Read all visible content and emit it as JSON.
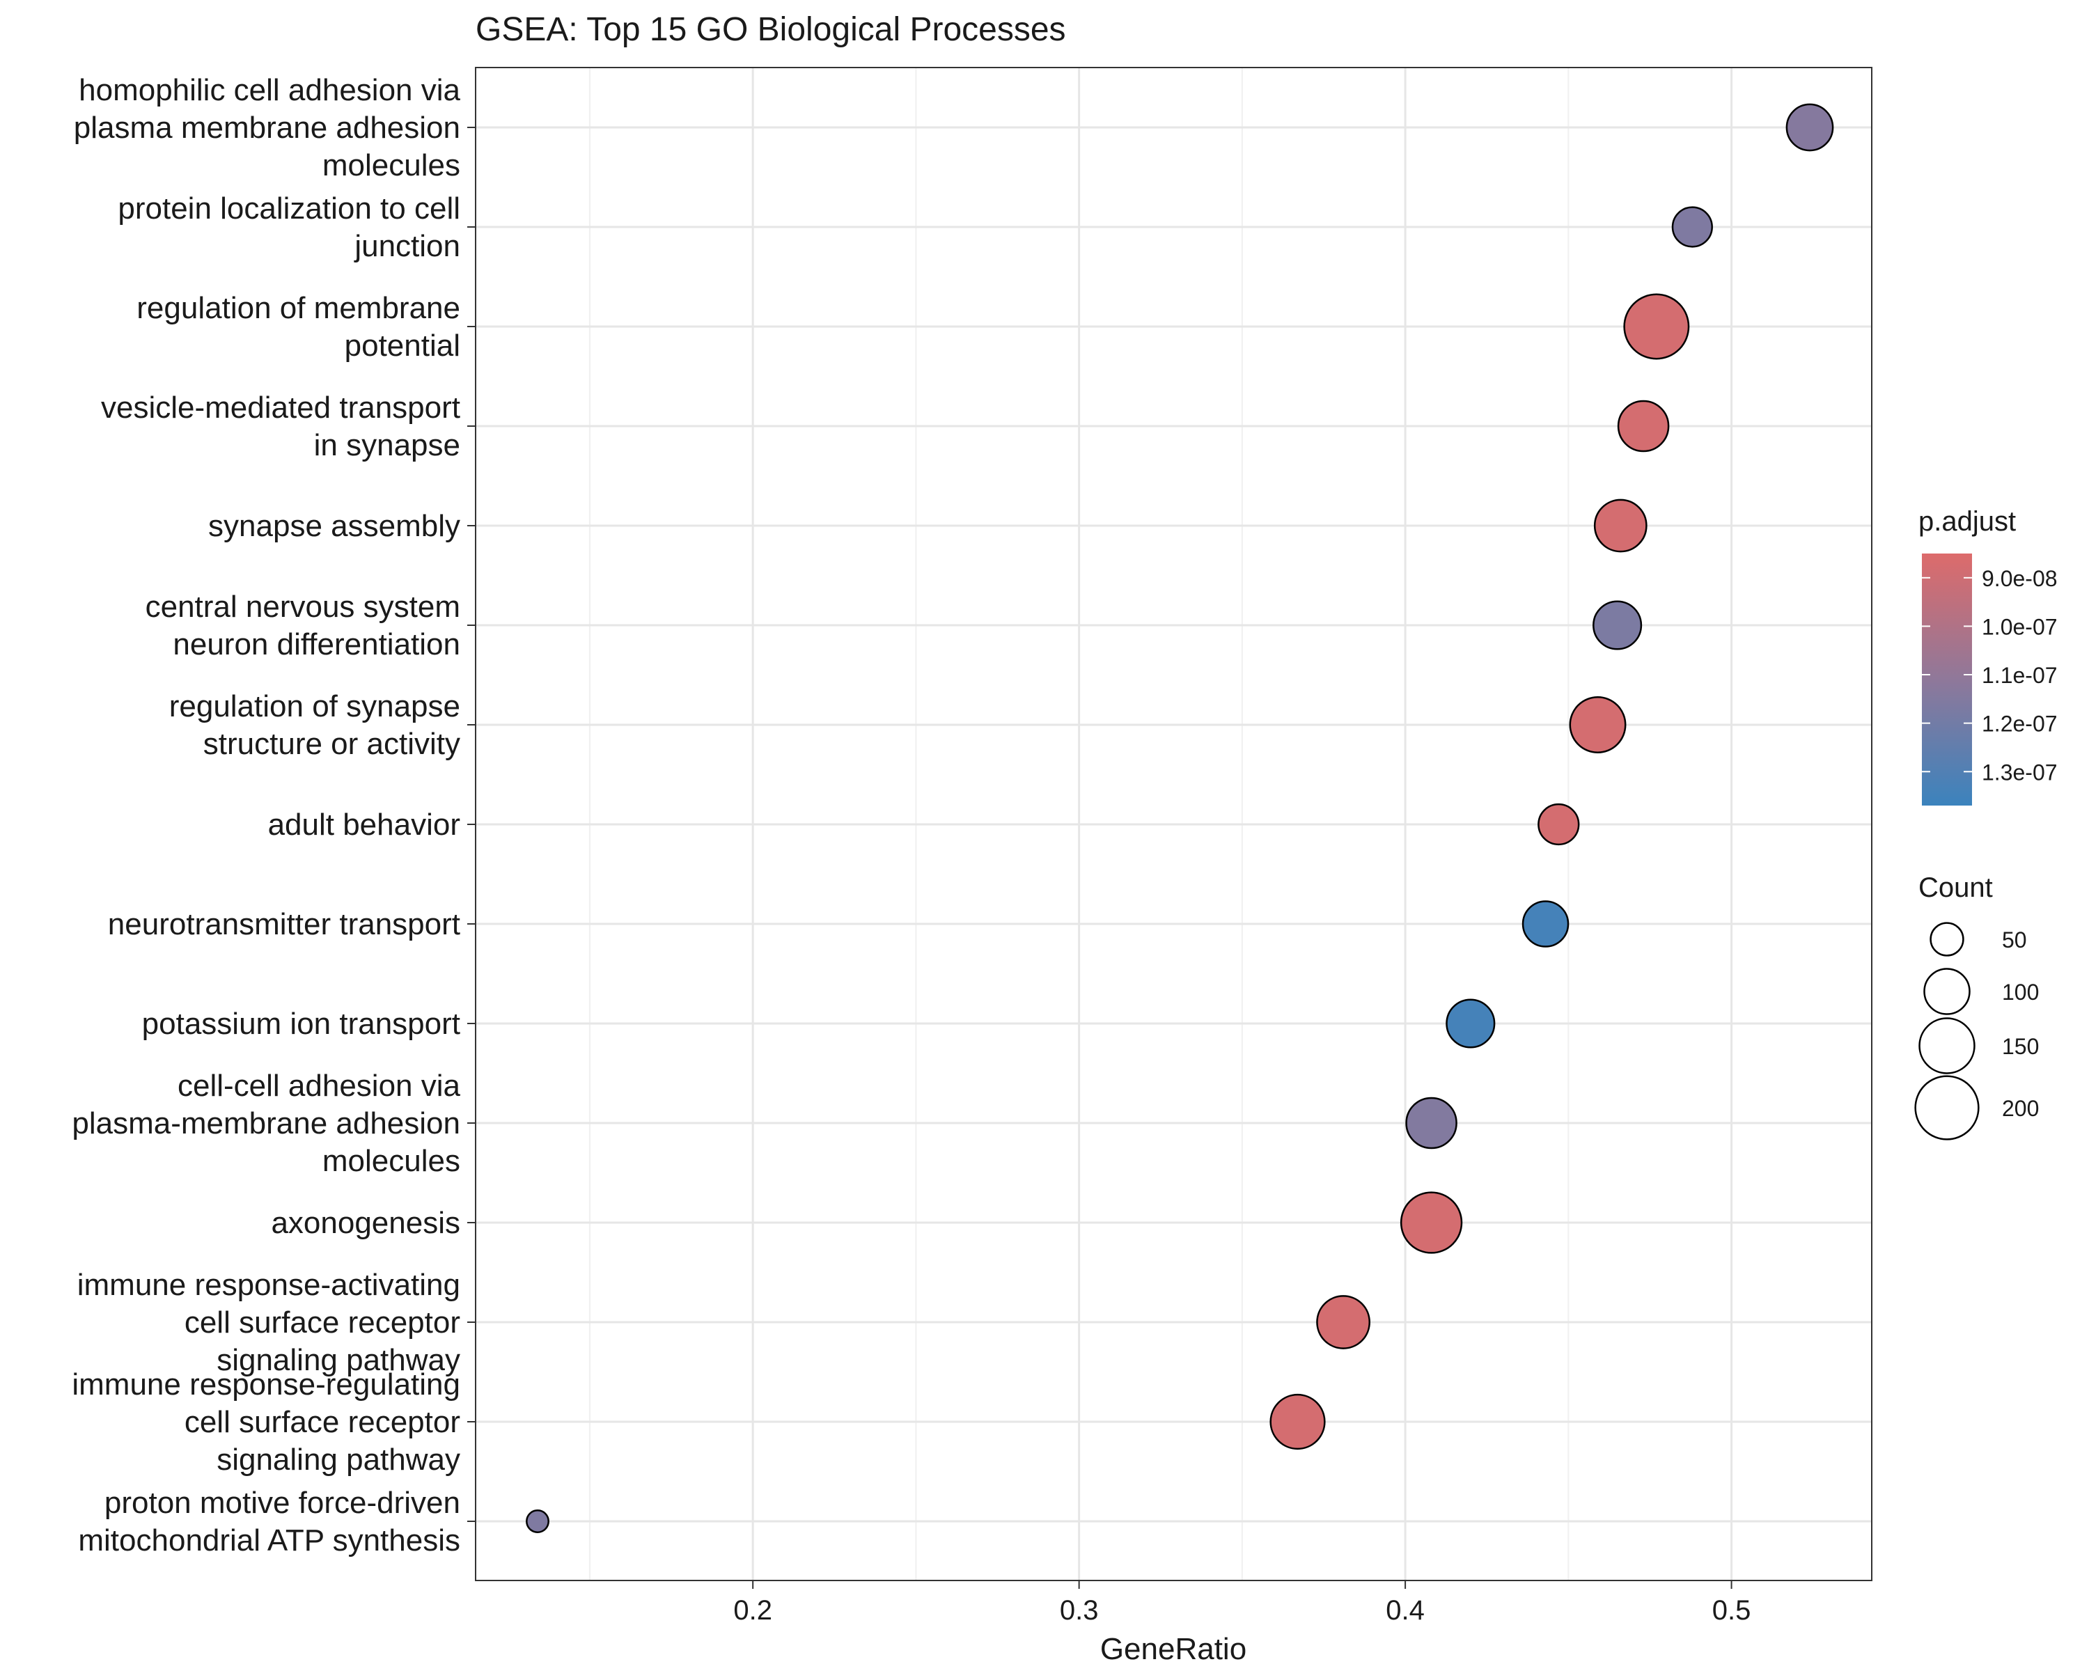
{
  "chart_data": {
    "type": "scatter",
    "title": "GSEA: Top 15 GO Biological Processes",
    "xlabel": "GeneRatio",
    "ylabel": "",
    "xlim": [
      0.115,
      0.543
    ],
    "xticks": [
      0.2,
      0.3,
      0.4,
      0.5
    ],
    "xtick_labels": [
      "0.2",
      "0.3",
      "0.4",
      "0.5"
    ],
    "grid": true,
    "categories": [
      [
        "homophilic cell adhesion via",
        "plasma membrane adhesion",
        "molecules"
      ],
      [
        "protein localization to cell",
        "junction"
      ],
      [
        "regulation of membrane",
        "potential"
      ],
      [
        "vesicle-mediated transport",
        "in synapse"
      ],
      [
        "synapse assembly"
      ],
      [
        "central nervous system",
        "neuron differentiation"
      ],
      [
        "regulation of synapse",
        "structure or activity"
      ],
      [
        "adult behavior"
      ],
      [
        "neurotransmitter transport"
      ],
      [
        "potassium ion transport"
      ],
      [
        "cell-cell adhesion via",
        "plasma-membrane adhesion",
        "molecules"
      ],
      [
        "axonogenesis"
      ],
      [
        "immune response-activating",
        "cell surface receptor",
        "signaling pathway"
      ],
      [
        "immune response-regulating",
        "cell surface receptor",
        "signaling pathway"
      ],
      [
        "proton motive force-driven",
        "mitochondrial ATP synthesis"
      ]
    ],
    "points": [
      {
        "x": 0.524,
        "count": 104,
        "p_adjust": 1.14e-07
      },
      {
        "x": 0.488,
        "count": 75,
        "p_adjust": 1.16e-07
      },
      {
        "x": 0.477,
        "count": 208,
        "p_adjust": 8.8e-08
      },
      {
        "x": 0.473,
        "count": 124,
        "p_adjust": 8.8e-08
      },
      {
        "x": 0.466,
        "count": 132,
        "p_adjust": 8.8e-08
      },
      {
        "x": 0.465,
        "count": 112,
        "p_adjust": 1.17e-07
      },
      {
        "x": 0.459,
        "count": 152,
        "p_adjust": 8.8e-08
      },
      {
        "x": 0.447,
        "count": 78,
        "p_adjust": 8.8e-08
      },
      {
        "x": 0.443,
        "count": 100,
        "p_adjust": 1.34e-07
      },
      {
        "x": 0.42,
        "count": 112,
        "p_adjust": 1.34e-07
      },
      {
        "x": 0.408,
        "count": 124,
        "p_adjust": 1.15e-07
      },
      {
        "x": 0.408,
        "count": 183,
        "p_adjust": 8.8e-08
      },
      {
        "x": 0.381,
        "count": 136,
        "p_adjust": 8.8e-08
      },
      {
        "x": 0.367,
        "count": 145,
        "p_adjust": 8.8e-08
      },
      {
        "x": 0.134,
        "count": 21,
        "p_adjust": 1.16e-07
      }
    ],
    "color_legend": {
      "title": "p.adjust",
      "low_color": "#dd6b6b",
      "high_color": "#3b83bd",
      "range": [
        8.5e-08,
        1.37e-07
      ],
      "ticks": [
        9e-08,
        1e-07,
        1.1e-07,
        1.2e-07,
        1.3e-07
      ],
      "tick_labels": [
        "9.0e-08",
        "1.0e-07",
        "1.1e-07",
        "1.2e-07",
        "1.3e-07"
      ],
      "placement": "right"
    },
    "size_legend": {
      "title": "Count",
      "values": [
        50,
        100,
        150,
        200
      ],
      "labels": [
        "50",
        "100",
        "150",
        "200"
      ],
      "placement": "right"
    }
  }
}
